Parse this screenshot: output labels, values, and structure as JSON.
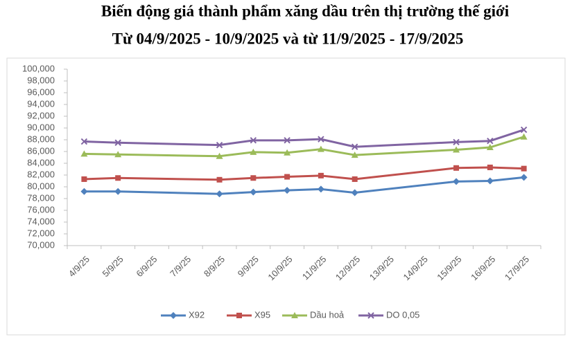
{
  "chart_data": {
    "type": "line",
    "title": "Biến động giá thành phẩm xăng dầu trên thị trường thế giới",
    "subtitle": "Từ 04/9/2025 - 10/9/2025 và từ 11/9/2025 - 17/9/2025",
    "xticks": [
      "4/9/25",
      "5/9/25",
      "6/9/25",
      "7/9/25",
      "8/9/25",
      "9/9/25",
      "10/9/25",
      "11/9/25",
      "12/9/25",
      "13/9/25",
      "14/9/25",
      "15/9/25",
      "16/9/25",
      "17/9/25"
    ],
    "x": [
      "4/9/25",
      "5/9/25",
      "8/9/25",
      "9/9/25",
      "10/9/25",
      "11/9/25",
      "12/9/25",
      "15/9/25",
      "16/9/25",
      "17/9/25"
    ],
    "series": [
      {
        "name": "X92",
        "color": "#4f81bd",
        "marker": "diamond",
        "values": [
          79200,
          79200,
          78800,
          79100,
          79400,
          79600,
          79000,
          80900,
          81000,
          81600
        ]
      },
      {
        "name": "X95",
        "color": "#c0504d",
        "marker": "square",
        "values": [
          81300,
          81500,
          81200,
          81500,
          81700,
          81900,
          81300,
          83200,
          83300,
          83100
        ]
      },
      {
        "name": "Dầu hoả",
        "color": "#9bbb59",
        "marker": "triangle",
        "values": [
          85600,
          85500,
          85200,
          85900,
          85800,
          86400,
          85400,
          86300,
          86700,
          88500
        ]
      },
      {
        "name": "DO 0,05",
        "color": "#8064a2",
        "marker": "x",
        "values": [
          87700,
          87500,
          87100,
          87900,
          87900,
          88100,
          86800,
          87600,
          87800,
          89700
        ]
      }
    ],
    "ylim": [
      70000,
      100000
    ],
    "yticks": [
      {
        "value": 70000,
        "label": "70,000"
      },
      {
        "value": 72000,
        "label": "72,000"
      },
      {
        "value": 74000,
        "label": "74,000"
      },
      {
        "value": 76000,
        "label": "76,000"
      },
      {
        "value": 78000,
        "label": "78,000"
      },
      {
        "value": 80000,
        "label": "80,000"
      },
      {
        "value": 82000,
        "label": "82,000"
      },
      {
        "value": 84000,
        "label": "84,000"
      },
      {
        "value": 86000,
        "label": "86,000"
      },
      {
        "value": 88000,
        "label": "88,000"
      },
      {
        "value": 90000,
        "label": "90,000"
      },
      {
        "value": 92000,
        "label": "92,000"
      },
      {
        "value": 94000,
        "label": "94,000"
      },
      {
        "value": 96000,
        "label": "96,000"
      },
      {
        "value": 98000,
        "label": "98,000"
      },
      {
        "value": 100000,
        "label": "100,000"
      }
    ],
    "grid": false,
    "legend": "bottom"
  }
}
